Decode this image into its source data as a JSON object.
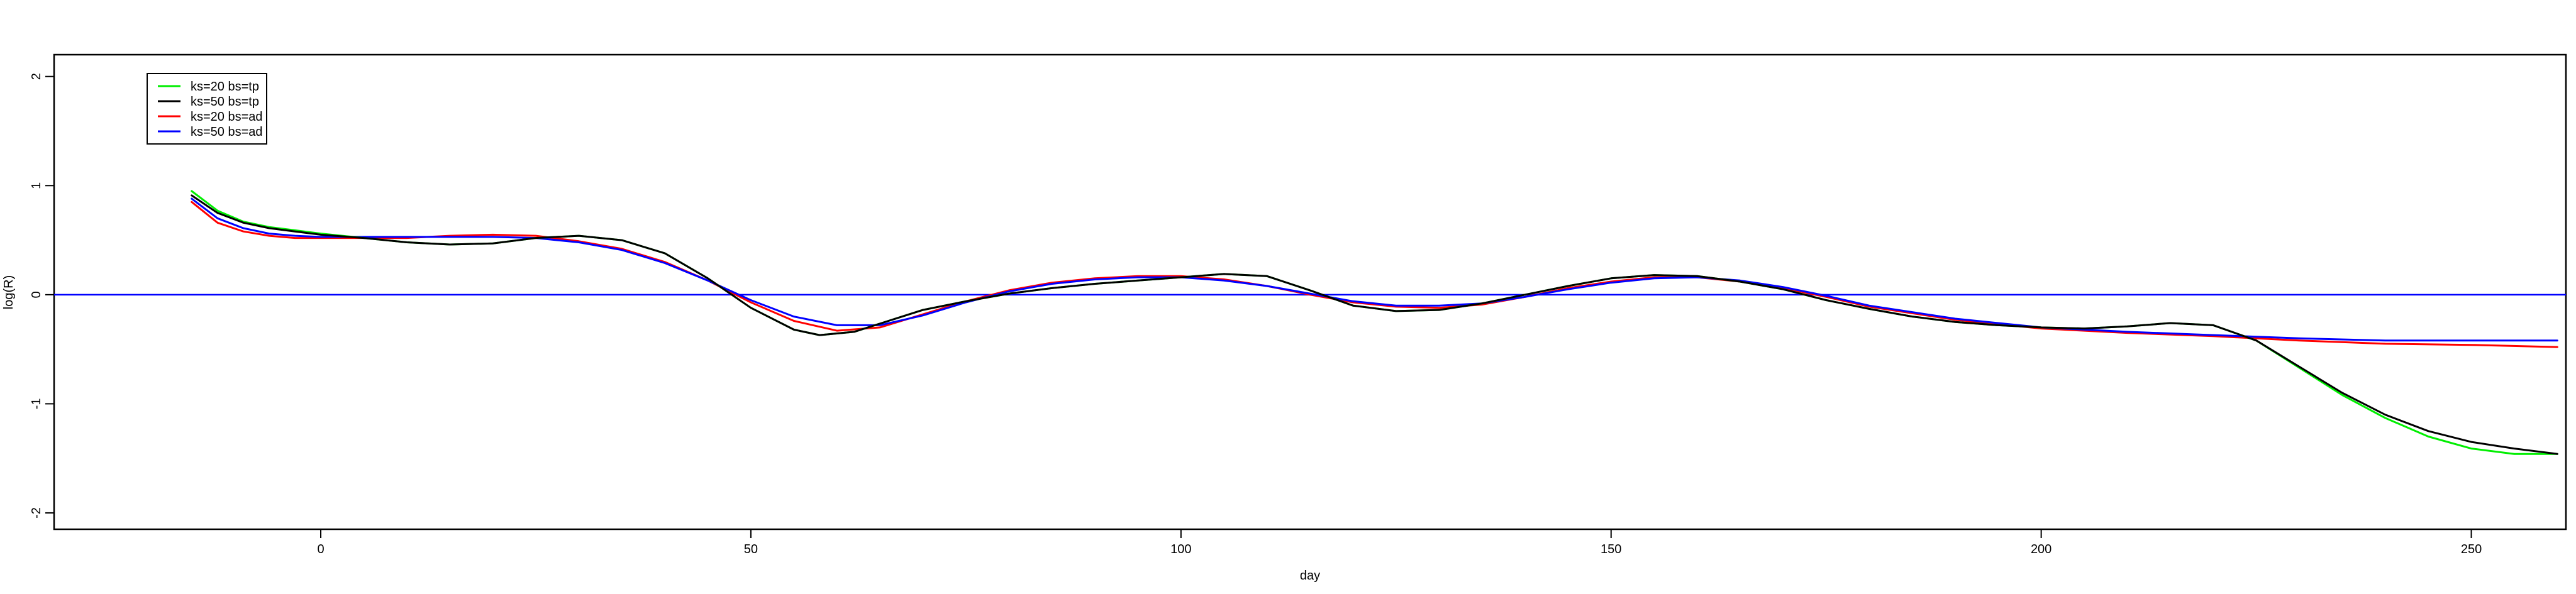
{
  "chart_data": {
    "type": "line",
    "title": "",
    "xlabel": "day",
    "ylabel": "log(R)",
    "xlim": [
      -31,
      261
    ],
    "ylim": [
      -2.15,
      2.2
    ],
    "x_ticks": [
      0,
      50,
      100,
      150,
      200,
      250
    ],
    "y_ticks": [
      -2,
      -1,
      0,
      1,
      2
    ],
    "x_tick_labels": [
      "0",
      "50",
      "100",
      "150",
      "200",
      "250"
    ],
    "y_tick_labels": [
      "-2",
      "-1",
      "0",
      "1",
      "2"
    ],
    "grid": false,
    "legend_position": "top-left",
    "reference_line": {
      "y": 0,
      "color": "#0000ff"
    },
    "series": [
      {
        "name": "ks=20 bs=tp",
        "color": "#00ee00",
        "x": [
          -15,
          -12,
          -9,
          -6,
          -3,
          0,
          5,
          10,
          15,
          20,
          25,
          30,
          35,
          40,
          45,
          50,
          55,
          58,
          62,
          66,
          70,
          75,
          80,
          85,
          90,
          95,
          100,
          105,
          110,
          115,
          120,
          125,
          130,
          135,
          140,
          145,
          150,
          155,
          160,
          165,
          170,
          175,
          180,
          185,
          190,
          195,
          200,
          205,
          210,
          215,
          220,
          225,
          230,
          235,
          240,
          245,
          250,
          255,
          260
        ],
        "y": [
          0.95,
          0.77,
          0.67,
          0.62,
          0.59,
          0.56,
          0.52,
          0.48,
          0.46,
          0.47,
          0.52,
          0.54,
          0.5,
          0.38,
          0.15,
          -0.12,
          -0.32,
          -0.37,
          -0.34,
          -0.24,
          -0.14,
          -0.06,
          0.01,
          0.06,
          0.1,
          0.13,
          0.16,
          0.19,
          0.17,
          0.04,
          -0.1,
          -0.15,
          -0.14,
          -0.08,
          0.0,
          0.08,
          0.15,
          0.18,
          0.17,
          0.12,
          0.05,
          -0.05,
          -0.13,
          -0.2,
          -0.25,
          -0.28,
          -0.3,
          -0.31,
          -0.29,
          -0.26,
          -0.28,
          -0.42,
          -0.67,
          -0.92,
          -1.13,
          -1.3,
          -1.41,
          -1.46,
          -1.46
        ]
      },
      {
        "name": "ks=50 bs=tp",
        "color": "#000000",
        "x": [
          -15,
          -12,
          -9,
          -6,
          -3,
          0,
          5,
          10,
          15,
          20,
          25,
          30,
          35,
          40,
          45,
          50,
          55,
          58,
          62,
          66,
          70,
          75,
          80,
          85,
          90,
          95,
          100,
          105,
          110,
          115,
          120,
          125,
          130,
          135,
          140,
          145,
          150,
          155,
          160,
          165,
          170,
          175,
          180,
          185,
          190,
          195,
          200,
          205,
          210,
          215,
          220,
          225,
          230,
          235,
          240,
          245,
          250,
          255,
          260
        ],
        "y": [
          0.91,
          0.75,
          0.66,
          0.61,
          0.58,
          0.55,
          0.52,
          0.48,
          0.46,
          0.47,
          0.52,
          0.54,
          0.5,
          0.38,
          0.15,
          -0.12,
          -0.32,
          -0.37,
          -0.34,
          -0.24,
          -0.14,
          -0.06,
          0.01,
          0.06,
          0.1,
          0.13,
          0.16,
          0.19,
          0.17,
          0.04,
          -0.1,
          -0.15,
          -0.14,
          -0.08,
          0.0,
          0.08,
          0.15,
          0.18,
          0.17,
          0.12,
          0.05,
          -0.05,
          -0.13,
          -0.2,
          -0.25,
          -0.28,
          -0.3,
          -0.31,
          -0.29,
          -0.26,
          -0.28,
          -0.42,
          -0.66,
          -0.9,
          -1.1,
          -1.25,
          -1.35,
          -1.41,
          -1.46
        ]
      },
      {
        "name": "ks=20 bs=ad",
        "color": "#ff0000",
        "x": [
          -15,
          -12,
          -9,
          -6,
          -3,
          0,
          5,
          10,
          15,
          20,
          25,
          30,
          35,
          40,
          45,
          50,
          55,
          60,
          65,
          70,
          75,
          80,
          85,
          90,
          95,
          100,
          105,
          110,
          115,
          120,
          125,
          130,
          135,
          140,
          145,
          150,
          155,
          160,
          165,
          170,
          175,
          180,
          190,
          200,
          210,
          220,
          230,
          240,
          250,
          260
        ],
        "y": [
          0.85,
          0.66,
          0.58,
          0.54,
          0.52,
          0.52,
          0.52,
          0.52,
          0.54,
          0.55,
          0.54,
          0.49,
          0.42,
          0.3,
          0.13,
          -0.07,
          -0.24,
          -0.33,
          -0.3,
          -0.18,
          -0.06,
          0.04,
          0.11,
          0.15,
          0.17,
          0.17,
          0.14,
          0.08,
          0.0,
          -0.07,
          -0.11,
          -0.12,
          -0.09,
          -0.02,
          0.06,
          0.12,
          0.16,
          0.16,
          0.12,
          0.06,
          -0.02,
          -0.11,
          -0.23,
          -0.31,
          -0.35,
          -0.38,
          -0.42,
          -0.45,
          -0.46,
          -0.48
        ]
      },
      {
        "name": "ks=50 bs=ad",
        "color": "#0000ff",
        "x": [
          -15,
          -12,
          -9,
          -6,
          -3,
          0,
          5,
          10,
          15,
          20,
          25,
          30,
          35,
          40,
          45,
          50,
          55,
          60,
          65,
          70,
          75,
          80,
          85,
          90,
          95,
          100,
          105,
          110,
          115,
          120,
          125,
          130,
          135,
          140,
          145,
          150,
          155,
          160,
          165,
          170,
          175,
          180,
          190,
          200,
          210,
          220,
          230,
          240,
          250,
          260
        ],
        "y": [
          0.88,
          0.7,
          0.61,
          0.56,
          0.54,
          0.53,
          0.53,
          0.53,
          0.53,
          0.53,
          0.52,
          0.48,
          0.41,
          0.29,
          0.13,
          -0.05,
          -0.2,
          -0.28,
          -0.28,
          -0.19,
          -0.07,
          0.03,
          0.1,
          0.14,
          0.16,
          0.16,
          0.13,
          0.08,
          0.01,
          -0.06,
          -0.1,
          -0.1,
          -0.08,
          -0.02,
          0.05,
          0.11,
          0.15,
          0.16,
          0.13,
          0.07,
          -0.01,
          -0.1,
          -0.22,
          -0.3,
          -0.34,
          -0.37,
          -0.4,
          -0.42,
          -0.42,
          -0.42
        ]
      }
    ]
  }
}
